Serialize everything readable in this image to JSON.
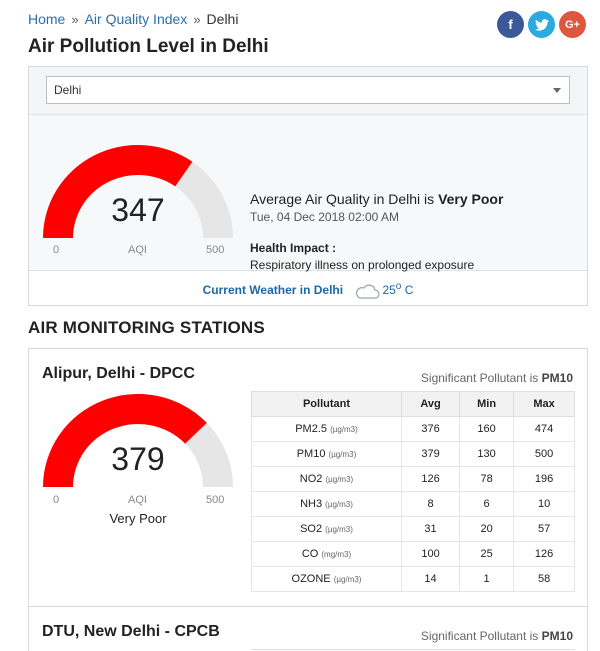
{
  "breadcrumb": {
    "home": "Home",
    "sep": "»",
    "aqi_index": "Air Quality Index",
    "current": "Delhi"
  },
  "social": {
    "facebook": "f",
    "twitter": "t",
    "google": "G+"
  },
  "page_title": "Air Pollution Level in Delhi",
  "city_select": {
    "value": "Delhi"
  },
  "overview": {
    "aqi": "347",
    "aqi_level": 0.694,
    "min_label": "0",
    "max_label": "500",
    "aqi_label": "AQI",
    "avg_prefix": "Average Air Quality in Delhi is ",
    "avg_status": "Very Poor",
    "datetime": "Tue, 04 Dec 2018 02:00 AM",
    "health_title": "Health Impact :",
    "health_text": "Respiratory illness on prolonged exposure",
    "weather_label": "Current Weather in Delhi",
    "temperature": "25",
    "temp_unit": "o",
    "temp_scale": " C"
  },
  "stations_title": "AIR MONITORING STATIONS",
  "stations": [
    {
      "name": "Alipur, Delhi - DPCC",
      "sig_prefix": "Significant Pollutant is ",
      "sig_pollutant": "PM10",
      "aqi": "379",
      "aqi_level": 0.758,
      "min_label": "0",
      "max_label": "500",
      "aqi_label": "AQI",
      "status": "Very Poor",
      "headers": [
        "Pollutant",
        "Avg",
        "Min",
        "Max"
      ],
      "rows": [
        {
          "name": "PM2.5",
          "unit": "(µg/m3)",
          "avg": "376",
          "min": "160",
          "max": "474"
        },
        {
          "name": "PM10",
          "unit": "(µg/m3)",
          "avg": "379",
          "min": "130",
          "max": "500"
        },
        {
          "name": "NO2",
          "unit": "(µg/m3)",
          "avg": "126",
          "min": "78",
          "max": "196"
        },
        {
          "name": "NH3",
          "unit": "(µg/m3)",
          "avg": "8",
          "min": "6",
          "max": "10"
        },
        {
          "name": "SO2",
          "unit": "(µg/m3)",
          "avg": "31",
          "min": "20",
          "max": "57"
        },
        {
          "name": "CO",
          "unit": "(mg/m3)",
          "avg": "100",
          "min": "25",
          "max": "126"
        },
        {
          "name": "OZONE",
          "unit": "(µg/m3)",
          "avg": "14",
          "min": "1",
          "max": "58"
        }
      ]
    },
    {
      "name": "DTU, New Delhi - CPCB",
      "sig_prefix": "Significant Pollutant is ",
      "sig_pollutant": "PM10"
    }
  ],
  "colors": {
    "gauge_fill": "#ff0000",
    "gauge_track": "#e6e6e6",
    "link": "#2a6fa8"
  }
}
